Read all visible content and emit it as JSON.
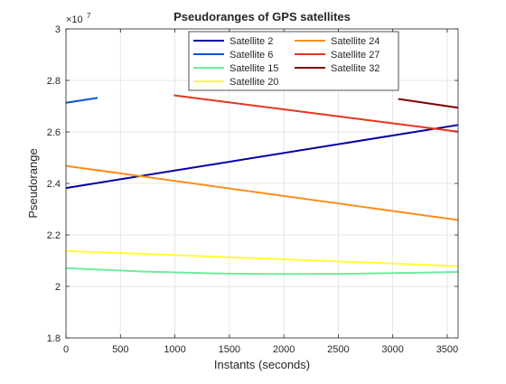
{
  "chart_data": {
    "type": "line",
    "title": "Pseudoranges of GPS satellites",
    "xlabel": "Instants (seconds)",
    "ylabel": "Pseudorange",
    "y_exponent_base": "×10",
    "y_exponent_power": "7",
    "xlim": [
      0,
      3600
    ],
    "ylim": [
      1.8,
      3.0
    ],
    "x_ticks": [
      0,
      500,
      1000,
      1500,
      2000,
      2500,
      3000,
      3500
    ],
    "y_ticks": [
      1.8,
      2.0,
      2.2,
      2.4,
      2.6,
      2.8,
      3.0
    ],
    "x_tick_labels": [
      "0",
      "500",
      "1000",
      "1500",
      "2000",
      "2500",
      "3000",
      "3500"
    ],
    "y_tick_labels": [
      "1.8",
      "2",
      "2.2",
      "2.4",
      "2.6",
      "2.8",
      "3"
    ],
    "grid": true,
    "legend_position": "top-right",
    "legend_columns": 2,
    "series": [
      {
        "name": "Satellite 2",
        "color": "#0000A8",
        "x": [
          0,
          3600
        ],
        "y": [
          2.382,
          2.627
        ]
      },
      {
        "name": "Satellite 6",
        "color": "#0055D4",
        "x": [
          0,
          290
        ],
        "y": [
          2.713,
          2.732
        ]
      },
      {
        "name": "Satellite 15",
        "color": "#6EEB9E",
        "x": [
          0,
          700,
          1400,
          2000,
          2600,
          3200,
          3600
        ],
        "y": [
          2.071,
          2.058,
          2.05,
          2.048,
          2.049,
          2.053,
          2.056
        ]
      },
      {
        "name": "Satellite 20",
        "color": "#FFFF33",
        "x": [
          0,
          3600
        ],
        "y": [
          2.138,
          2.079
        ]
      },
      {
        "name": "Satellite 24",
        "color": "#FF8C1A",
        "x": [
          0,
          3600
        ],
        "y": [
          2.468,
          2.258
        ]
      },
      {
        "name": "Satellite 27",
        "color": "#E8341C",
        "x": [
          990,
          3600
        ],
        "y": [
          2.742,
          2.601
        ]
      },
      {
        "name": "Satellite 32",
        "color": "#800000",
        "x": [
          3050,
          3600
        ],
        "y": [
          2.728,
          2.694
        ]
      }
    ]
  }
}
